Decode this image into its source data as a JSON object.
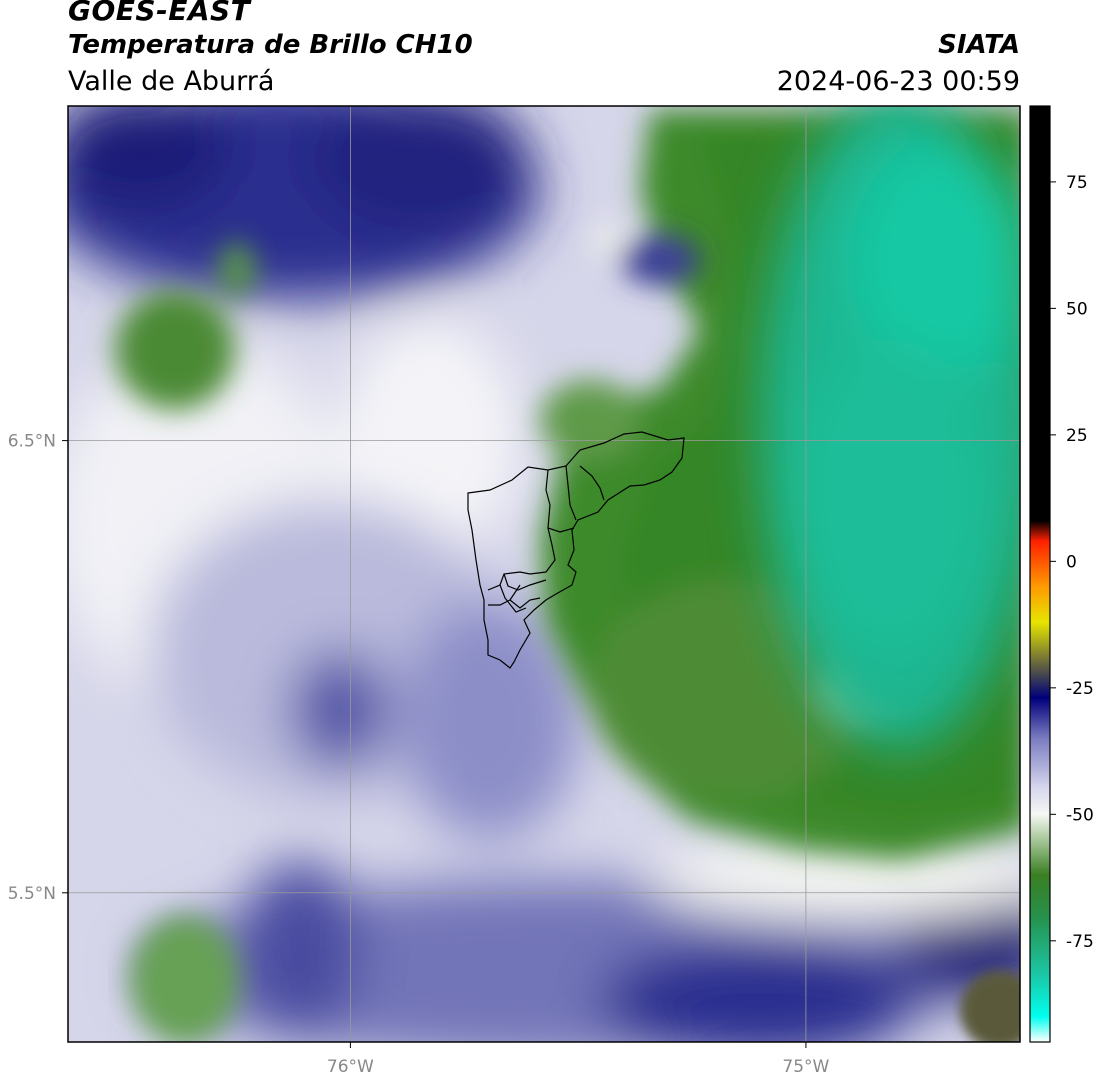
{
  "header": {
    "satellite": "GOES-EAST",
    "product": "Temperatura de Brillo CH10",
    "region": "Valle de Aburrá",
    "organization": "SIATA",
    "timestamp": "2024-06-23 00:59"
  },
  "map": {
    "lat_ticks": [
      {
        "value": 6.5,
        "label": "6.5°N"
      },
      {
        "value": 5.5,
        "label": "5.5°N"
      }
    ],
    "lon_ticks": [
      {
        "value": -76.0,
        "label": "76°W"
      },
      {
        "value": -75.0,
        "label": "75°W"
      }
    ],
    "extent": {
      "lon_min": -76.62,
      "lon_max": -74.53,
      "lat_min": 5.17,
      "lat_max": 7.24
    },
    "gridline_color": "#9a9a9a"
  },
  "colorbar": {
    "ticks": [
      {
        "value": 75,
        "label": "75"
      },
      {
        "value": 50,
        "label": "50"
      },
      {
        "value": 25,
        "label": "25"
      },
      {
        "value": 0,
        "label": "0"
      },
      {
        "value": -25,
        "label": "-25"
      },
      {
        "value": -50,
        "label": "-50"
      },
      {
        "value": -75,
        "label": "-75"
      }
    ],
    "range": [
      -95,
      90
    ],
    "stops": [
      {
        "value": -95,
        "color": "#ffffff"
      },
      {
        "value": -90,
        "color": "#00ffee"
      },
      {
        "value": -82,
        "color": "#1bc8a8"
      },
      {
        "value": -70,
        "color": "#27904a"
      },
      {
        "value": -62,
        "color": "#3a7f22"
      },
      {
        "value": -55,
        "color": "#a8c79b"
      },
      {
        "value": -50,
        "color": "#f4f7f2"
      },
      {
        "value": -45,
        "color": "#d8d8ee"
      },
      {
        "value": -35,
        "color": "#7a7cc0"
      },
      {
        "value": -27,
        "color": "#00007c"
      },
      {
        "value": -20,
        "color": "#6a6a3a"
      },
      {
        "value": -12,
        "color": "#e6e400"
      },
      {
        "value": -5,
        "color": "#ff9a00"
      },
      {
        "value": 4,
        "color": "#ff2000"
      },
      {
        "value": 8,
        "color": "#000000"
      },
      {
        "value": 90,
        "color": "#000000"
      }
    ]
  }
}
